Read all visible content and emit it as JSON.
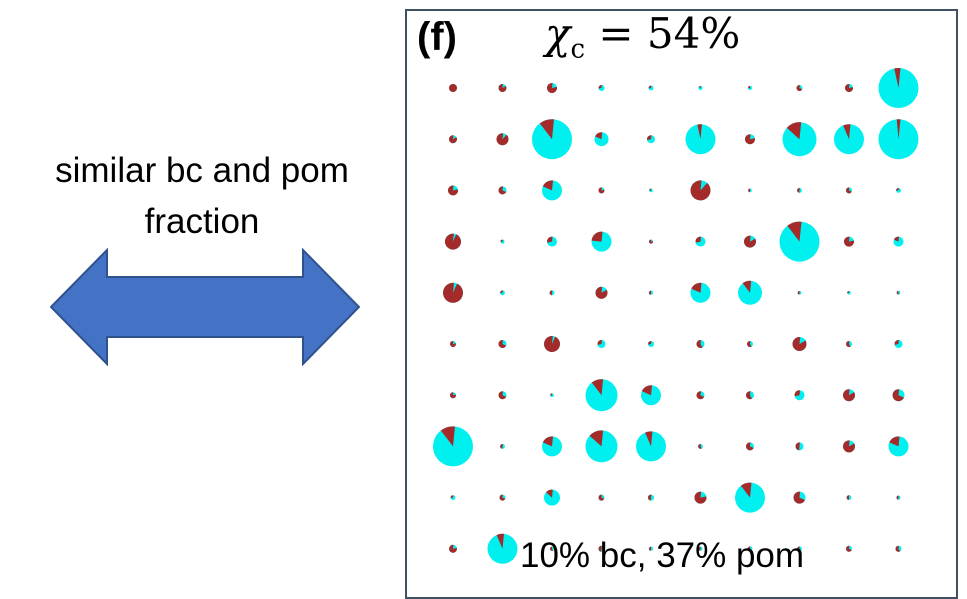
{
  "left_label": {
    "line1": "similar bc and pom",
    "line2": "fraction"
  },
  "panel": {
    "label": "(f)",
    "chi_symbol": "χ",
    "chi_subscript": "c",
    "chi_value": " = 54%"
  },
  "bottom_label": "10% bc, 37% pom",
  "colors": {
    "arrow_fill": "#4472c4",
    "arrow_stroke": "#2f528f",
    "bc": "#a52a2a",
    "pom": "#00f0f0",
    "frame": "#3f5163"
  },
  "pie_grid": {
    "rows": 10,
    "cols": 10,
    "cells": [
      [
        [
          0.2,
          1.0
        ],
        [
          0.2,
          0.85
        ],
        [
          0.25,
          0.8
        ],
        [
          0.15,
          0.3
        ],
        [
          0.12,
          0.3
        ],
        [
          0.1,
          0.2
        ],
        [
          0.1,
          0.3
        ],
        [
          0.15,
          0.7
        ],
        [
          0.2,
          0.8
        ],
        [
          1.0,
          0.05
        ]
      ],
      [
        [
          0.2,
          0.85
        ],
        [
          0.3,
          0.9
        ],
        [
          1.0,
          0.12
        ],
        [
          0.35,
          0.2
        ],
        [
          0.2,
          0.3
        ],
        [
          0.75,
          0.05
        ],
        [
          0.25,
          0.8
        ],
        [
          0.85,
          0.15
        ],
        [
          0.75,
          0.08
        ],
        [
          1.0,
          0.03
        ]
      ],
      [
        [
          0.25,
          0.8
        ],
        [
          0.2,
          0.7
        ],
        [
          0.5,
          0.2
        ],
        [
          0.15,
          0.8
        ],
        [
          0.08,
          0.3
        ],
        [
          0.5,
          0.9
        ],
        [
          0.08,
          0.5
        ],
        [
          0.12,
          0.5
        ],
        [
          0.15,
          0.7
        ],
        [
          0.12,
          0.3
        ]
      ],
      [
        [
          0.4,
          0.95
        ],
        [
          0.1,
          0.3
        ],
        [
          0.25,
          0.3
        ],
        [
          0.5,
          0.25
        ],
        [
          0.1,
          0.8
        ],
        [
          0.25,
          0.3
        ],
        [
          0.3,
          0.85
        ],
        [
          1.0,
          0.12
        ],
        [
          0.25,
          0.8
        ],
        [
          0.25,
          0.2
        ]
      ],
      [
        [
          0.5,
          0.95
        ],
        [
          0.12,
          0.3
        ],
        [
          0.12,
          0.5
        ],
        [
          0.3,
          0.85
        ],
        [
          0.1,
          0.5
        ],
        [
          0.5,
          0.2
        ],
        [
          0.6,
          0.12
        ],
        [
          0.08,
          0.5
        ],
        [
          0.08,
          0.3
        ],
        [
          0.06,
          0.5
        ]
      ],
      [
        [
          0.15,
          0.8
        ],
        [
          0.2,
          0.7
        ],
        [
          0.4,
          0.95
        ],
        [
          0.2,
          0.3
        ],
        [
          0.15,
          0.3
        ],
        [
          0.2,
          0.6
        ],
        [
          0.15,
          0.6
        ],
        [
          0.35,
          0.85
        ],
        [
          0.15,
          0.6
        ],
        [
          0.2,
          0.3
        ]
      ],
      [
        [
          0.15,
          0.8
        ],
        [
          0.2,
          0.7
        ],
        [
          0.06,
          0.3
        ],
        [
          0.8,
          0.12
        ],
        [
          0.5,
          0.2
        ],
        [
          0.2,
          0.7
        ],
        [
          0.2,
          0.6
        ],
        [
          0.25,
          0.3
        ],
        [
          0.3,
          0.85
        ],
        [
          0.3,
          0.7
        ]
      ],
      [
        [
          1.0,
          0.12
        ],
        [
          0.12,
          0.5
        ],
        [
          0.5,
          0.2
        ],
        [
          0.8,
          0.15
        ],
        [
          0.75,
          0.08
        ],
        [
          0.12,
          0.6
        ],
        [
          0.2,
          0.7
        ],
        [
          0.2,
          0.5
        ],
        [
          0.3,
          0.85
        ],
        [
          0.5,
          0.2
        ]
      ],
      [
        [
          0.12,
          0.3
        ],
        [
          0.15,
          0.7
        ],
        [
          0.4,
          0.15
        ],
        [
          0.15,
          0.7
        ],
        [
          0.15,
          0.5
        ],
        [
          0.3,
          0.8
        ],
        [
          0.75,
          0.12
        ],
        [
          0.3,
          0.7
        ],
        [
          0.12,
          0.5
        ],
        [
          0.1,
          0.5
        ]
      ],
      [
        [
          0.2,
          0.8
        ],
        [
          0.75,
          0.08
        ],
        [
          0.1,
          0.6
        ],
        [
          0.15,
          0.5
        ],
        [
          0.1,
          0.5
        ],
        [
          0.1,
          0.5
        ],
        [
          0.12,
          0.5
        ],
        [
          0.12,
          0.5
        ],
        [
          0.15,
          0.7
        ],
        [
          0.15,
          0.6
        ]
      ]
    ]
  }
}
